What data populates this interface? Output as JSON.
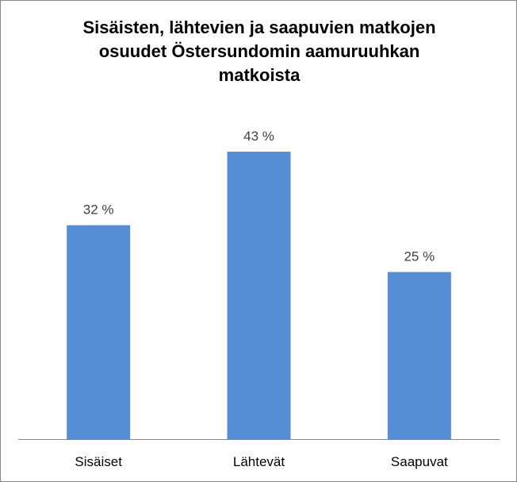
{
  "chart_data": {
    "type": "bar",
    "title_lines": [
      "Sisäisten, lähtevien  ja saapuvien matkojen",
      "osuudet Östersundomin aamuruuhkan",
      "matkoista"
    ],
    "categories": [
      "Sisäiset",
      "Lähtevät",
      "Saapuvat"
    ],
    "values": [
      32,
      43,
      25
    ],
    "value_labels": [
      "32 %",
      "43 %",
      "25 %"
    ],
    "unit": "%",
    "ylim": [
      0,
      43
    ],
    "grid": false,
    "legend": "none",
    "colors": {
      "bar": "#558ED5",
      "axis": "#868686",
      "border": "#868686"
    }
  }
}
